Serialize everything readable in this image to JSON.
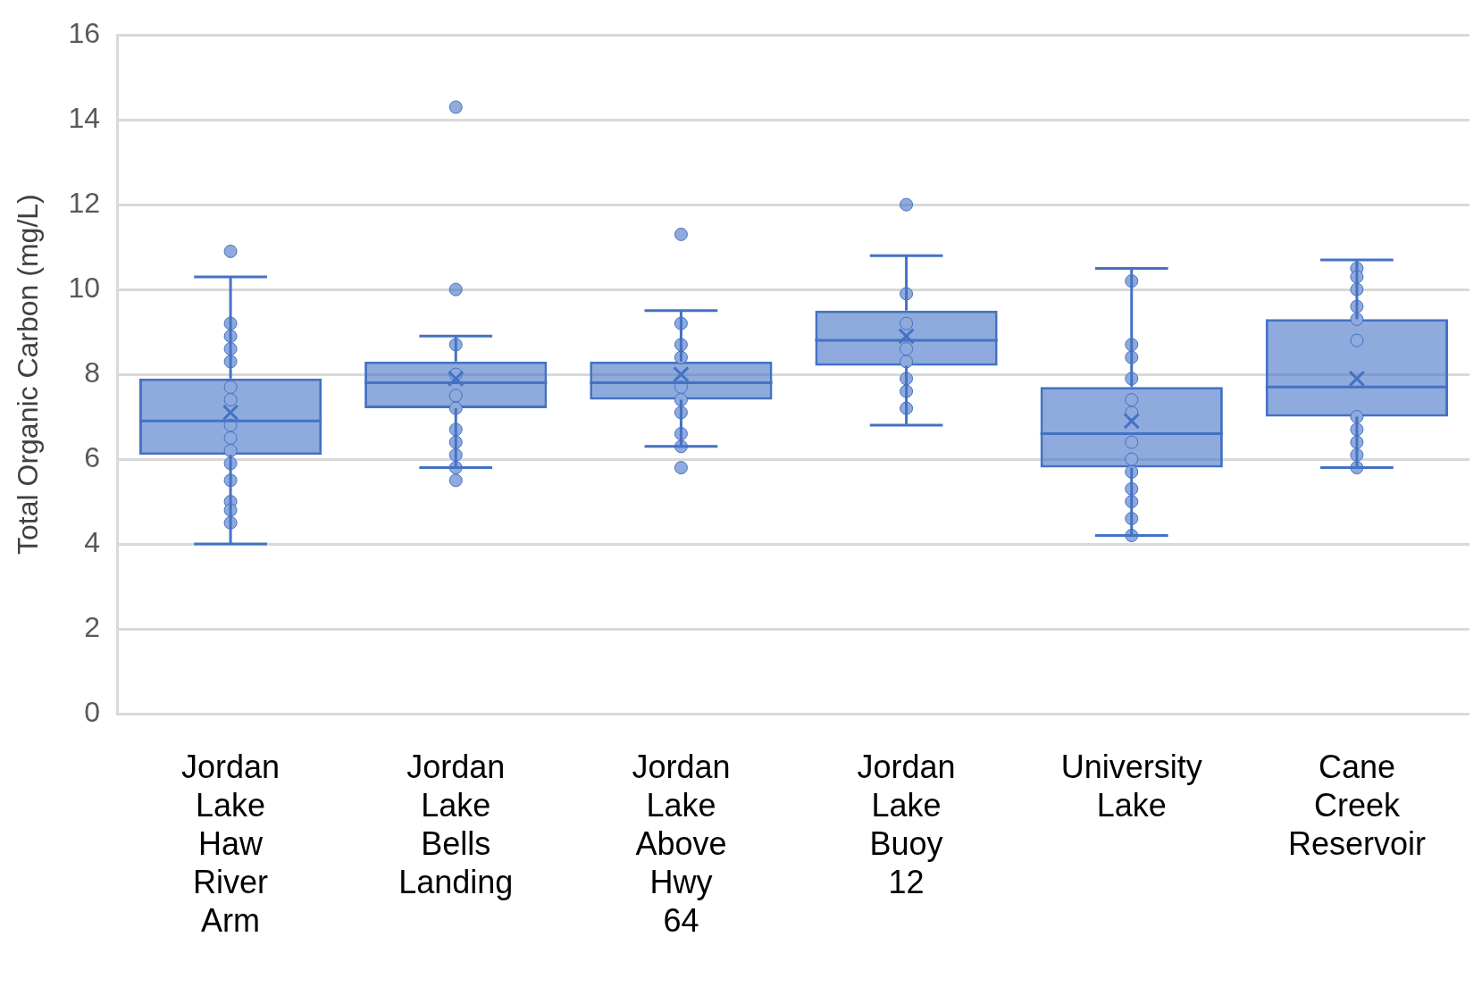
{
  "chart_data": {
    "type": "box",
    "ylabel": "Total Organic Carbon (mg/L)",
    "categories": [
      "Jordan Lake Haw River Arm",
      "Jordan Lake Bells Landing",
      "Jordan Lake Above Hwy 64",
      "Jordan Lake Buoy 12",
      "University Lake",
      "Cane Creek Reservoir"
    ],
    "color": "#4472c4",
    "boxes": [
      {
        "low": 4.0,
        "q1": 6.1,
        "median": 6.9,
        "q3": 7.9,
        "high": 10.3,
        "mean": 7.1,
        "outliers": [
          10.9
        ]
      },
      {
        "low": 5.8,
        "q1": 7.2,
        "median": 7.8,
        "q3": 8.3,
        "high": 8.9,
        "mean": 7.9,
        "outliers": [
          14.3,
          10.0,
          5.5
        ]
      },
      {
        "low": 6.3,
        "q1": 7.4,
        "median": 7.8,
        "q3": 8.3,
        "high": 9.5,
        "mean": 8.0,
        "outliers": [
          11.3,
          5.8
        ]
      },
      {
        "low": 6.8,
        "q1": 8.2,
        "median": 8.8,
        "q3": 9.5,
        "high": 10.8,
        "mean": 8.9,
        "outliers": [
          12.0
        ]
      },
      {
        "low": 4.2,
        "q1": 5.8,
        "median": 6.6,
        "q3": 7.7,
        "high": 10.5,
        "mean": 6.9
      },
      {
        "low": 5.8,
        "q1": 7.0,
        "median": 7.7,
        "q3": 9.3,
        "high": 10.7,
        "mean": 7.9
      }
    ],
    "series": [
      {
        "type": "scatter",
        "color": "#8faadc",
        "x": [
          "Jordan Lake Haw River Arm",
          "Jordan Lake Haw River Arm",
          "Jordan Lake Haw River Arm",
          "Jordan Lake Haw River Arm",
          "Jordan Lake Haw River Arm",
          "Jordan Lake Haw River Arm",
          "Jordan Lake Haw River Arm",
          "Jordan Lake Haw River Arm",
          "Jordan Lake Haw River Arm",
          "Jordan Lake Haw River Arm",
          "Jordan Lake Haw River Arm",
          "Jordan Lake Haw River Arm",
          "Jordan Lake Haw River Arm",
          "Jordan Lake Haw River Arm",
          "Jordan Lake Bells Landing",
          "Jordan Lake Bells Landing",
          "Jordan Lake Bells Landing",
          "Jordan Lake Bells Landing",
          "Jordan Lake Bells Landing",
          "Jordan Lake Bells Landing",
          "Jordan Lake Bells Landing",
          "Jordan Lake Bells Landing",
          "Jordan Lake Above Hwy 64",
          "Jordan Lake Above Hwy 64",
          "Jordan Lake Above Hwy 64",
          "Jordan Lake Above Hwy 64",
          "Jordan Lake Above Hwy 64",
          "Jordan Lake Above Hwy 64",
          "Jordan Lake Above Hwy 64",
          "Jordan Lake Above Hwy 64",
          "Jordan Lake Buoy 12",
          "Jordan Lake Buoy 12",
          "Jordan Lake Buoy 12",
          "Jordan Lake Buoy 12",
          "Jordan Lake Buoy 12",
          "Jordan Lake Buoy 12",
          "Jordan Lake Buoy 12",
          "University Lake",
          "University Lake",
          "University Lake",
          "University Lake",
          "University Lake",
          "University Lake",
          "University Lake",
          "University Lake",
          "University Lake",
          "University Lake",
          "University Lake",
          "University Lake",
          "University Lake",
          "Cane Creek Reservoir",
          "Cane Creek Reservoir",
          "Cane Creek Reservoir",
          "Cane Creek Reservoir",
          "Cane Creek Reservoir",
          "Cane Creek Reservoir",
          "Cane Creek Reservoir",
          "Cane Creek Reservoir",
          "Cane Creek Reservoir",
          "Cane Creek Reservoir",
          "Cane Creek Reservoir"
        ],
        "values": [
          9.2,
          8.9,
          8.6,
          8.3,
          7.7,
          7.4,
          6.8,
          6.5,
          6.2,
          5.9,
          5.5,
          5.0,
          4.8,
          4.5,
          8.7,
          8.0,
          7.5,
          6.7,
          6.4,
          6.1,
          5.8,
          7.2,
          9.2,
          8.7,
          8.4,
          7.7,
          7.4,
          7.1,
          6.6,
          6.3,
          9.9,
          9.2,
          8.6,
          8.3,
          7.9,
          7.6,
          7.2,
          10.2,
          8.7,
          8.4,
          7.9,
          7.4,
          7.1,
          6.4,
          6.0,
          5.7,
          5.3,
          5.0,
          4.6,
          4.2,
          10.5,
          10.3,
          10.0,
          9.6,
          9.3,
          8.8,
          7.0,
          6.7,
          6.4,
          6.1,
          5.8
        ]
      }
    ],
    "ylim": [
      0,
      16
    ],
    "yticks": [
      0,
      2,
      4,
      6,
      8,
      10,
      12,
      14,
      16
    ],
    "grid": "y",
    "legend": false,
    "marker": "circle"
  }
}
